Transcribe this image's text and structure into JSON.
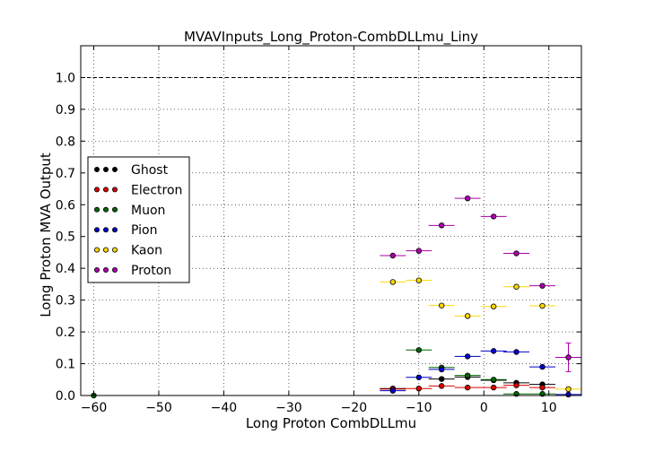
{
  "chart_data": {
    "type": "scatter",
    "title": "MVAVInputs_Long_Proton-CombDLLmu_Liny",
    "xlabel": "Long Proton CombDLLmu",
    "ylabel": "Long Proton MVA Output",
    "xlim": [
      -62,
      15
    ],
    "ylim": [
      0,
      1.1
    ],
    "xticks": [
      -60,
      -50,
      -40,
      -30,
      -20,
      -10,
      0,
      10
    ],
    "yticks": [
      0.0,
      0.1,
      0.2,
      0.3,
      0.4,
      0.5,
      0.6,
      0.7,
      0.8,
      0.9,
      1.0
    ],
    "xtick_labels": [
      "−60",
      "−50",
      "−40",
      "−30",
      "−20",
      "−10",
      "0",
      "10"
    ],
    "ytick_labels": [
      "0.0",
      "0.1",
      "0.2",
      "0.3",
      "0.4",
      "0.5",
      "0.6",
      "0.7",
      "0.8",
      "0.9",
      "1.0"
    ],
    "grid": true,
    "reference_line": 1.0,
    "legend_placement": "center-left",
    "series": [
      {
        "name": "Ghost",
        "color": "#000000",
        "points": [
          {
            "x": -14,
            "y": 0.022
          },
          {
            "x": -6.5,
            "y": 0.052
          },
          {
            "x": -2.5,
            "y": 0.058
          },
          {
            "x": 1.5,
            "y": 0.048
          },
          {
            "x": 5,
            "y": 0.04
          },
          {
            "x": 9,
            "y": 0.035
          }
        ]
      },
      {
        "name": "Electron",
        "color": "#dd0000",
        "points": [
          {
            "x": -14,
            "y": 0.02
          },
          {
            "x": -10,
            "y": 0.022
          },
          {
            "x": -6.5,
            "y": 0.03
          },
          {
            "x": -2.5,
            "y": 0.025
          },
          {
            "x": 1.5,
            "y": 0.025
          },
          {
            "x": 5,
            "y": 0.032
          },
          {
            "x": 9,
            "y": 0.025
          }
        ]
      },
      {
        "name": "Muon",
        "color": "#006600",
        "points": [
          {
            "x": -60,
            "y": 0.0
          },
          {
            "x": -10,
            "y": 0.143
          },
          {
            "x": -6.5,
            "y": 0.088
          },
          {
            "x": -2.5,
            "y": 0.063
          },
          {
            "x": 1.5,
            "y": 0.05
          },
          {
            "x": 5,
            "y": 0.005
          },
          {
            "x": 9,
            "y": 0.005
          }
        ]
      },
      {
        "name": "Pion",
        "color": "#0000cc",
        "points": [
          {
            "x": -14,
            "y": 0.015
          },
          {
            "x": -10,
            "y": 0.057
          },
          {
            "x": -6.5,
            "y": 0.082
          },
          {
            "x": -2.5,
            "y": 0.123
          },
          {
            "x": 1.5,
            "y": 0.14
          },
          {
            "x": 5,
            "y": 0.137
          },
          {
            "x": 9,
            "y": 0.09
          },
          {
            "x": 13,
            "y": 0.003
          }
        ]
      },
      {
        "name": "Kaon",
        "color": "#ffd700",
        "points": [
          {
            "x": -14,
            "y": 0.357
          },
          {
            "x": -10,
            "y": 0.362
          },
          {
            "x": -6.5,
            "y": 0.283
          },
          {
            "x": -2.5,
            "y": 0.25
          },
          {
            "x": 1.5,
            "y": 0.28
          },
          {
            "x": 5,
            "y": 0.342
          },
          {
            "x": 9,
            "y": 0.282
          },
          {
            "x": 13,
            "y": 0.02
          }
        ]
      },
      {
        "name": "Proton",
        "color": "#aa00aa",
        "points": [
          {
            "x": -14,
            "y": 0.44
          },
          {
            "x": -10,
            "y": 0.455
          },
          {
            "x": -6.5,
            "y": 0.535
          },
          {
            "x": -2.5,
            "y": 0.62
          },
          {
            "x": 1.5,
            "y": 0.563
          },
          {
            "x": 5,
            "y": 0.447
          },
          {
            "x": 9,
            "y": 0.345
          },
          {
            "x": 13,
            "y": 0.12,
            "yerr": 0.045
          }
        ]
      }
    ]
  }
}
